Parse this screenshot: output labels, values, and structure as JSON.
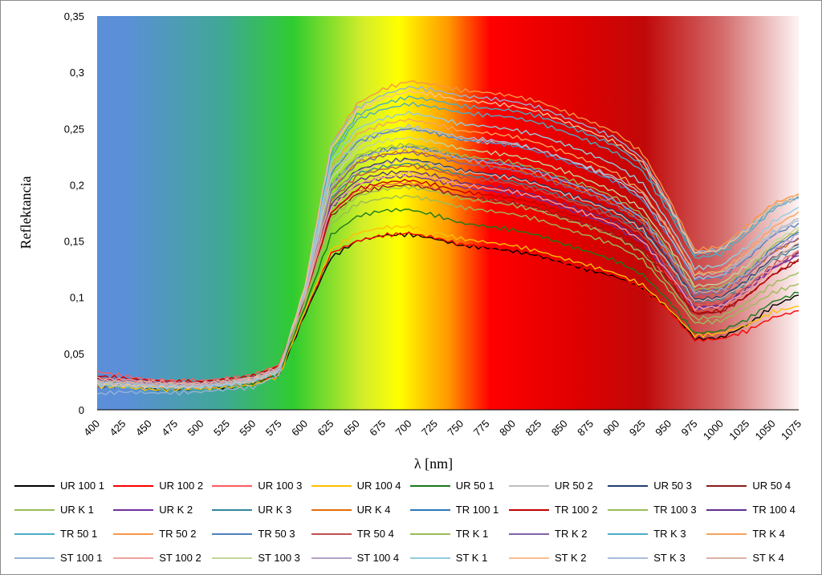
{
  "chart_data": {
    "type": "line",
    "xlabel": "λ [nm]",
    "ylabel": "Reflektancia",
    "xlim": [
      400,
      1075
    ],
    "ylim": [
      0,
      0.35
    ],
    "x_ticks": [
      "400",
      "425",
      "450",
      "475",
      "500",
      "525",
      "550",
      "575",
      "600",
      "625",
      "650",
      "675",
      "700",
      "725",
      "750",
      "775",
      "800",
      "825",
      "850",
      "875",
      "900",
      "925",
      "950",
      "975",
      "1000",
      "1025",
      "1050",
      "1075"
    ],
    "y_ticks": [
      "0",
      "0,05",
      "0,1",
      "0,15",
      "0,2",
      "0,25",
      "0,3",
      "0,35"
    ],
    "y_tick_values": [
      0,
      0.05,
      0.1,
      0.15,
      0.2,
      0.25,
      0.3,
      0.35
    ],
    "background": "visible-spectrum gradient from blue (400 nm) through green, yellow, red to white (1075 nm)",
    "legend_position": "bottom",
    "x": [
      400,
      425,
      450,
      475,
      500,
      525,
      550,
      575,
      600,
      625,
      650,
      675,
      700,
      725,
      750,
      775,
      800,
      825,
      850,
      875,
      900,
      925,
      950,
      975,
      1000,
      1025,
      1050,
      1075
    ],
    "series": [
      {
        "name": "UR 100 1",
        "color": "#000000",
        "values": [
          0.02,
          0.022,
          0.019,
          0.018,
          0.019,
          0.02,
          0.022,
          0.03,
          0.085,
          0.135,
          0.15,
          0.155,
          0.156,
          0.152,
          0.146,
          0.144,
          0.141,
          0.137,
          0.13,
          0.124,
          0.118,
          0.108,
          0.09,
          0.063,
          0.064,
          0.075,
          0.092,
          0.102
        ]
      },
      {
        "name": "UR 100 2",
        "color": "#ff0000",
        "values": [
          0.02,
          0.023,
          0.021,
          0.021,
          0.022,
          0.023,
          0.024,
          0.031,
          0.087,
          0.139,
          0.15,
          0.155,
          0.157,
          0.153,
          0.147,
          0.145,
          0.143,
          0.138,
          0.131,
          0.125,
          0.119,
          0.108,
          0.088,
          0.062,
          0.063,
          0.07,
          0.082,
          0.088
        ]
      },
      {
        "name": "UR 100 3",
        "color": "#ff5a5a",
        "values": [
          0.034,
          0.03,
          0.027,
          0.026,
          0.026,
          0.028,
          0.031,
          0.04,
          0.1,
          0.175,
          0.195,
          0.2,
          0.202,
          0.197,
          0.19,
          0.187,
          0.184,
          0.178,
          0.17,
          0.163,
          0.154,
          0.14,
          0.118,
          0.093,
          0.094,
          0.106,
          0.125,
          0.139
        ]
      },
      {
        "name": "UR 100 4",
        "color": "#ffc000",
        "values": [
          0.021,
          0.02,
          0.018,
          0.018,
          0.019,
          0.02,
          0.022,
          0.03,
          0.088,
          0.142,
          0.157,
          0.162,
          0.163,
          0.158,
          0.152,
          0.149,
          0.146,
          0.141,
          0.134,
          0.128,
          0.121,
          0.111,
          0.09,
          0.066,
          0.068,
          0.075,
          0.087,
          0.092
        ]
      },
      {
        "name": "UR 50 1",
        "color": "#1a7a1a",
        "values": [
          0.022,
          0.024,
          0.022,
          0.021,
          0.021,
          0.022,
          0.024,
          0.032,
          0.092,
          0.155,
          0.172,
          0.177,
          0.178,
          0.173,
          0.166,
          0.163,
          0.16,
          0.155,
          0.147,
          0.14,
          0.132,
          0.12,
          0.097,
          0.068,
          0.07,
          0.08,
          0.096,
          0.104
        ]
      },
      {
        "name": "UR 50 2",
        "color": "#bfbfbf",
        "values": [
          0.023,
          0.022,
          0.021,
          0.02,
          0.021,
          0.022,
          0.025,
          0.034,
          0.105,
          0.205,
          0.235,
          0.245,
          0.25,
          0.246,
          0.24,
          0.238,
          0.236,
          0.231,
          0.223,
          0.215,
          0.206,
          0.192,
          0.16,
          0.12,
          0.122,
          0.138,
          0.158,
          0.17
        ]
      },
      {
        "name": "UR 50 3",
        "color": "#1f3f6f",
        "values": [
          0.025,
          0.024,
          0.023,
          0.022,
          0.022,
          0.024,
          0.027,
          0.036,
          0.1,
          0.19,
          0.213,
          0.22,
          0.223,
          0.219,
          0.213,
          0.21,
          0.207,
          0.201,
          0.193,
          0.185,
          0.176,
          0.162,
          0.133,
          0.098,
          0.1,
          0.115,
          0.135,
          0.147
        ]
      },
      {
        "name": "UR 50 4",
        "color": "#8b1a1a",
        "values": [
          0.028,
          0.026,
          0.024,
          0.023,
          0.023,
          0.025,
          0.028,
          0.037,
          0.097,
          0.172,
          0.192,
          0.198,
          0.2,
          0.196,
          0.19,
          0.187,
          0.184,
          0.179,
          0.171,
          0.164,
          0.155,
          0.141,
          0.114,
          0.085,
          0.087,
          0.101,
          0.12,
          0.132
        ]
      },
      {
        "name": "UR K 1",
        "color": "#9bbb59",
        "values": [
          0.024,
          0.023,
          0.022,
          0.021,
          0.021,
          0.023,
          0.026,
          0.035,
          0.095,
          0.165,
          0.183,
          0.188,
          0.19,
          0.186,
          0.18,
          0.177,
          0.174,
          0.169,
          0.161,
          0.154,
          0.146,
          0.133,
          0.107,
          0.077,
          0.079,
          0.09,
          0.104,
          0.112
        ]
      },
      {
        "name": "UR K 2",
        "color": "#7030a0",
        "values": [
          0.027,
          0.026,
          0.024,
          0.023,
          0.023,
          0.025,
          0.028,
          0.037,
          0.1,
          0.18,
          0.2,
          0.206,
          0.208,
          0.204,
          0.198,
          0.195,
          0.192,
          0.187,
          0.179,
          0.171,
          0.162,
          0.148,
          0.121,
          0.09,
          0.092,
          0.106,
          0.126,
          0.137
        ]
      },
      {
        "name": "UR K 3",
        "color": "#31859c",
        "values": [
          0.026,
          0.025,
          0.023,
          0.022,
          0.022,
          0.024,
          0.027,
          0.036,
          0.102,
          0.188,
          0.21,
          0.216,
          0.219,
          0.215,
          0.209,
          0.206,
          0.203,
          0.197,
          0.189,
          0.181,
          0.172,
          0.158,
          0.13,
          0.096,
          0.098,
          0.113,
          0.133,
          0.145
        ]
      },
      {
        "name": "UR K 4",
        "color": "#e46c0a",
        "values": [
          0.025,
          0.024,
          0.023,
          0.022,
          0.022,
          0.024,
          0.027,
          0.036,
          0.103,
          0.195,
          0.22,
          0.227,
          0.23,
          0.226,
          0.22,
          0.217,
          0.214,
          0.208,
          0.2,
          0.192,
          0.182,
          0.167,
          0.137,
          0.103,
          0.105,
          0.12,
          0.14,
          0.152
        ]
      },
      {
        "name": "TR 100 1",
        "color": "#2e75b6",
        "values": [
          0.024,
          0.023,
          0.022,
          0.021,
          0.022,
          0.024,
          0.027,
          0.036,
          0.104,
          0.2,
          0.224,
          0.231,
          0.234,
          0.23,
          0.224,
          0.221,
          0.218,
          0.212,
          0.203,
          0.195,
          0.185,
          0.17,
          0.14,
          0.105,
          0.107,
          0.122,
          0.144,
          0.158
        ]
      },
      {
        "name": "TR 100 2",
        "color": "#c00000",
        "values": [
          0.03,
          0.028,
          0.026,
          0.025,
          0.025,
          0.027,
          0.03,
          0.039,
          0.099,
          0.175,
          0.196,
          0.202,
          0.204,
          0.2,
          0.194,
          0.191,
          0.188,
          0.183,
          0.175,
          0.168,
          0.159,
          0.145,
          0.117,
          0.086,
          0.088,
          0.101,
          0.12,
          0.134
        ]
      },
      {
        "name": "TR 100 3",
        "color": "#9bbb59",
        "values": [
          0.025,
          0.024,
          0.022,
          0.021,
          0.021,
          0.023,
          0.026,
          0.035,
          0.097,
          0.17,
          0.19,
          0.196,
          0.198,
          0.194,
          0.188,
          0.185,
          0.182,
          0.177,
          0.169,
          0.162,
          0.153,
          0.139,
          0.112,
          0.081,
          0.083,
          0.095,
          0.112,
          0.122
        ]
      },
      {
        "name": "TR 100 4",
        "color": "#5f2f8f",
        "values": [
          0.026,
          0.025,
          0.024,
          0.023,
          0.023,
          0.025,
          0.028,
          0.037,
          0.101,
          0.183,
          0.204,
          0.21,
          0.212,
          0.208,
          0.202,
          0.199,
          0.196,
          0.19,
          0.182,
          0.175,
          0.166,
          0.151,
          0.123,
          0.091,
          0.093,
          0.107,
          0.127,
          0.14
        ]
      },
      {
        "name": "TR 50 1",
        "color": "#4bacc6",
        "values": [
          0.022,
          0.021,
          0.02,
          0.019,
          0.02,
          0.022,
          0.025,
          0.034,
          0.108,
          0.225,
          0.258,
          0.267,
          0.272,
          0.269,
          0.264,
          0.262,
          0.26,
          0.255,
          0.247,
          0.238,
          0.228,
          0.212,
          0.176,
          0.135,
          0.138,
          0.156,
          0.178,
          0.19
        ]
      },
      {
        "name": "TR 50 2",
        "color": "#f79646",
        "values": [
          0.023,
          0.022,
          0.021,
          0.02,
          0.02,
          0.022,
          0.025,
          0.034,
          0.11,
          0.235,
          0.272,
          0.285,
          0.292,
          0.289,
          0.284,
          0.282,
          0.279,
          0.274,
          0.265,
          0.256,
          0.246,
          0.228,
          0.188,
          0.142,
          0.145,
          0.163,
          0.183,
          0.192
        ]
      },
      {
        "name": "TR 50 3",
        "color": "#4f81bd",
        "values": [
          0.024,
          0.023,
          0.022,
          0.021,
          0.021,
          0.023,
          0.026,
          0.035,
          0.106,
          0.21,
          0.238,
          0.246,
          0.25,
          0.246,
          0.24,
          0.238,
          0.235,
          0.229,
          0.221,
          0.212,
          0.202,
          0.186,
          0.154,
          0.116,
          0.118,
          0.134,
          0.155,
          0.166
        ]
      },
      {
        "name": "TR 50 4",
        "color": "#c0504d",
        "values": [
          0.027,
          0.026,
          0.024,
          0.023,
          0.023,
          0.025,
          0.028,
          0.037,
          0.102,
          0.186,
          0.208,
          0.214,
          0.217,
          0.213,
          0.207,
          0.204,
          0.201,
          0.195,
          0.187,
          0.179,
          0.17,
          0.155,
          0.126,
          0.093,
          0.095,
          0.109,
          0.129,
          0.141
        ]
      },
      {
        "name": "TR K 1",
        "color": "#9bbb59",
        "values": [
          0.025,
          0.024,
          0.023,
          0.022,
          0.022,
          0.024,
          0.027,
          0.036,
          0.104,
          0.2,
          0.226,
          0.233,
          0.236,
          0.232,
          0.226,
          0.223,
          0.22,
          0.214,
          0.206,
          0.198,
          0.188,
          0.173,
          0.142,
          0.107,
          0.109,
          0.124,
          0.146,
          0.16
        ]
      },
      {
        "name": "TR K 2",
        "color": "#8064a2",
        "values": [
          0.026,
          0.025,
          0.024,
          0.023,
          0.023,
          0.025,
          0.028,
          0.037,
          0.103,
          0.195,
          0.219,
          0.226,
          0.229,
          0.225,
          0.219,
          0.216,
          0.213,
          0.207,
          0.199,
          0.191,
          0.181,
          0.166,
          0.136,
          0.102,
          0.104,
          0.119,
          0.14,
          0.153
        ]
      },
      {
        "name": "TR K 3",
        "color": "#4bacc6",
        "values": [
          0.023,
          0.022,
          0.021,
          0.02,
          0.021,
          0.023,
          0.026,
          0.035,
          0.109,
          0.228,
          0.262,
          0.272,
          0.278,
          0.275,
          0.27,
          0.268,
          0.266,
          0.261,
          0.253,
          0.244,
          0.234,
          0.217,
          0.18,
          0.138,
          0.141,
          0.159,
          0.18,
          0.189
        ]
      },
      {
        "name": "TR K 4",
        "color": "#f7a35c",
        "values": [
          0.024,
          0.023,
          0.022,
          0.021,
          0.021,
          0.023,
          0.026,
          0.035,
          0.107,
          0.215,
          0.245,
          0.254,
          0.258,
          0.254,
          0.248,
          0.246,
          0.243,
          0.237,
          0.229,
          0.22,
          0.21,
          0.194,
          0.16,
          0.121,
          0.123,
          0.14,
          0.162,
          0.176
        ]
      },
      {
        "name": "ST 100 1",
        "color": "#95b3d7",
        "values": [
          0.014,
          0.016,
          0.015,
          0.015,
          0.016,
          0.018,
          0.02,
          0.031,
          0.11,
          0.235,
          0.268,
          0.28,
          0.287,
          0.284,
          0.279,
          0.277,
          0.274,
          0.269,
          0.26,
          0.251,
          0.241,
          0.223,
          0.184,
          0.14,
          0.143,
          0.161,
          0.181,
          0.188
        ]
      },
      {
        "name": "ST 100 2",
        "color": "#f2a0a0",
        "values": [
          0.028,
          0.027,
          0.025,
          0.024,
          0.024,
          0.026,
          0.029,
          0.038,
          0.101,
          0.18,
          0.201,
          0.207,
          0.21,
          0.206,
          0.2,
          0.197,
          0.194,
          0.189,
          0.181,
          0.173,
          0.164,
          0.15,
          0.122,
          0.09,
          0.092,
          0.106,
          0.127,
          0.142
        ]
      },
      {
        "name": "ST 100 3",
        "color": "#c3d69b",
        "values": [
          0.024,
          0.023,
          0.022,
          0.021,
          0.021,
          0.023,
          0.026,
          0.035,
          0.105,
          0.205,
          0.231,
          0.239,
          0.242,
          0.238,
          0.232,
          0.229,
          0.226,
          0.22,
          0.212,
          0.203,
          0.193,
          0.178,
          0.146,
          0.11,
          0.112,
          0.128,
          0.149,
          0.162
        ]
      },
      {
        "name": "ST 100 4",
        "color": "#b3a2c7",
        "values": [
          0.025,
          0.024,
          0.023,
          0.022,
          0.022,
          0.024,
          0.027,
          0.036,
          0.104,
          0.198,
          0.223,
          0.23,
          0.233,
          0.229,
          0.223,
          0.22,
          0.217,
          0.211,
          0.203,
          0.195,
          0.185,
          0.17,
          0.139,
          0.104,
          0.106,
          0.121,
          0.142,
          0.156
        ]
      },
      {
        "name": "ST K 1",
        "color": "#93cddd",
        "values": [
          0.022,
          0.021,
          0.02,
          0.02,
          0.02,
          0.022,
          0.025,
          0.034,
          0.107,
          0.22,
          0.25,
          0.259,
          0.264,
          0.26,
          0.254,
          0.252,
          0.249,
          0.244,
          0.236,
          0.227,
          0.217,
          0.201,
          0.166,
          0.126,
          0.128,
          0.145,
          0.167,
          0.18
        ]
      },
      {
        "name": "ST K 2",
        "color": "#fac090",
        "values": [
          0.023,
          0.022,
          0.021,
          0.02,
          0.021,
          0.023,
          0.026,
          0.035,
          0.11,
          0.232,
          0.266,
          0.277,
          0.283,
          0.28,
          0.275,
          0.273,
          0.27,
          0.265,
          0.256,
          0.247,
          0.237,
          0.22,
          0.182,
          0.139,
          0.142,
          0.16,
          0.181,
          0.19
        ]
      },
      {
        "name": "ST K 3",
        "color": "#a6bddb",
        "values": [
          0.024,
          0.023,
          0.022,
          0.021,
          0.021,
          0.023,
          0.026,
          0.035,
          0.106,
          0.212,
          0.24,
          0.248,
          0.252,
          0.248,
          0.242,
          0.24,
          0.237,
          0.231,
          0.223,
          0.214,
          0.204,
          0.188,
          0.155,
          0.117,
          0.119,
          0.136,
          0.157,
          0.168
        ]
      },
      {
        "name": "ST K 4",
        "color": "#d9b3a3",
        "values": [
          0.026,
          0.025,
          0.024,
          0.023,
          0.023,
          0.025,
          0.028,
          0.037,
          0.102,
          0.19,
          0.212,
          0.219,
          0.222,
          0.218,
          0.212,
          0.209,
          0.206,
          0.2,
          0.192,
          0.184,
          0.175,
          0.16,
          0.13,
          0.097,
          0.099,
          0.113,
          0.134,
          0.148
        ]
      }
    ]
  }
}
